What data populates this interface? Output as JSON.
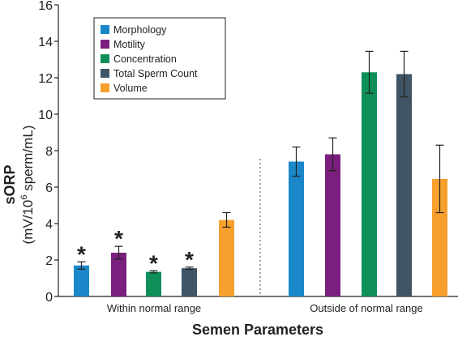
{
  "chart_data": {
    "type": "bar",
    "title": "",
    "xlabel": "Semen Parameters",
    "ylabel_main": "sORP",
    "ylabel_sub_prefix": "(mV/10",
    "ylabel_sub_sup": "6",
    "ylabel_sub_suffix": " sperm/mL)",
    "ylim": [
      0,
      16
    ],
    "yticks": [
      0,
      2,
      4,
      6,
      8,
      10,
      12,
      14,
      16
    ],
    "groups": [
      "Within normal range",
      "Outside of normal range"
    ],
    "series": [
      {
        "name": "Morphology",
        "color": "#1a87c9",
        "values": [
          1.7,
          7.4
        ],
        "errors": [
          0.2,
          0.8
        ]
      },
      {
        "name": "Motility",
        "color": "#7b1f7e",
        "values": [
          2.4,
          7.8
        ],
        "errors": [
          0.35,
          0.9
        ]
      },
      {
        "name": "Concentration",
        "color": "#0e8f5a",
        "values": [
          1.35,
          12.3
        ],
        "errors": [
          0.06,
          1.15
        ]
      },
      {
        "name": "Total Sperm Count",
        "color": "#3f5566",
        "values": [
          1.55,
          12.2
        ],
        "errors": [
          0.06,
          1.25
        ]
      },
      {
        "name": "Volume",
        "color": "#f7a02e",
        "values": [
          4.2,
          6.45
        ],
        "errors": [
          0.4,
          1.85
        ]
      }
    ],
    "significance": [
      [
        "*",
        ""
      ],
      [
        "*",
        ""
      ],
      [
        "*",
        ""
      ],
      [
        "*",
        ""
      ],
      [
        "",
        ""
      ]
    ],
    "legend_position": "top-left",
    "grid": false
  }
}
